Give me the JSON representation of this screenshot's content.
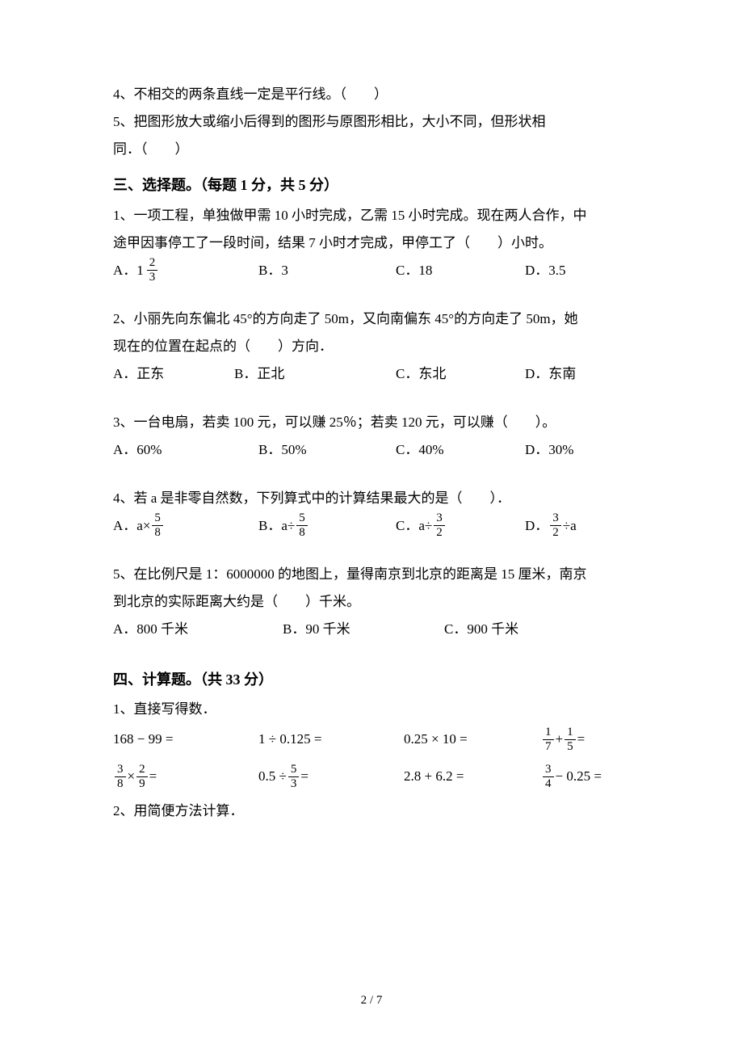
{
  "tf": {
    "q4": "4、不相交的两条直线一定是平行线。（　　）",
    "q5a": "5、把图形放大或缩小后得到的图形与原图形相比，大小不同，但形状相",
    "q5b": "同．（　　）"
  },
  "sec3": {
    "title": "三、选择题。（每题 1 分，共 5 分）",
    "q1a": "1、一项工程，单独做甲需 10 小时完成，乙需 15 小时完成。现在两人合作，中",
    "q1b": "途甲因事停工了一段时间，结果 7 小时才完成，甲停工了（　　）小时。",
    "q1opt": {
      "A_prefix": "A．",
      "A_whole": "1",
      "A_num": "2",
      "A_den": "3",
      "B": "B．3",
      "C": "C．18",
      "D": "D．3.5"
    },
    "q2a": "2、小丽先向东偏北 45°的方向走了 50m，又向南偏东 45°的方向走了 50m，她",
    "q2b": "现在的位置在起点的（　　）方向．",
    "q2opt": {
      "A": "A．正东",
      "B": "B．正北",
      "C": "C．东北",
      "D": "D．东南"
    },
    "q3": "3、一台电扇，若卖 100 元，可以赚 25％；若卖 120 元，可以赚（　　）。",
    "q3opt": {
      "A": "A．60%",
      "B": "B．50%",
      "C": "C．40%",
      "D": "D．30%"
    },
    "q4": "4、若 a 是非零自然数，下列算式中的计算结果最大的是（　　）．",
    "q4opt": {
      "A_prefix": "A．a×",
      "A_num": "5",
      "A_den": "8",
      "B_prefix": "B．a÷",
      "B_num": "5",
      "B_den": "8",
      "C_prefix": "C．a÷",
      "C_num": "3",
      "C_den": "2",
      "D_prefix": "D．",
      "D_num": "3",
      "D_den": "2",
      "D_suffix": "÷a"
    },
    "q5a": "5、在比例尺是 1：6000000 的地图上，量得南京到北京的距离是 15 厘米，南京",
    "q5b": "到北京的实际距离大约是（　　）千米。",
    "q5opt": {
      "A": "A．800 千米",
      "B": "B．90 千米",
      "C": "C．900 千米"
    }
  },
  "sec4": {
    "title": "四、计算题。（共 33 分）",
    "q1": "1、直接写得数．",
    "row1": {
      "c1": "168 − 99 =",
      "c2": "1 ÷ 0.125 =",
      "c3": "0.25 × 10 =",
      "c4_n1": "1",
      "c4_d1": "7",
      "c4_op": "+",
      "c4_n2": "1",
      "c4_d2": "5",
      "c4_eq": "="
    },
    "row2": {
      "c1_n1": "3",
      "c1_d1": "8",
      "c1_op": "×",
      "c1_n2": "2",
      "c1_d2": "9",
      "c1_eq": "=",
      "c2_pre": "0.5 ÷",
      "c2_n": "5",
      "c2_d": "3",
      "c2_eq": "=",
      "c3": "2.8 + 6.2 =",
      "c4_n": "3",
      "c4_d": "4",
      "c4_post": "− 0.25 ="
    },
    "q2": "2、用简便方法计算．"
  },
  "footer": "2 / 7",
  "layout": {
    "optCol1": "0px",
    "optCol2": "180px",
    "optCol3": "350px",
    "optCol4": "510px",
    "q5Col1": "0px",
    "q5Col2": "210px",
    "q5Col3": "410px",
    "calcCol1": "0px",
    "calcCol2": "180px",
    "calcCol3": "360px",
    "calcCol4": "530px"
  }
}
